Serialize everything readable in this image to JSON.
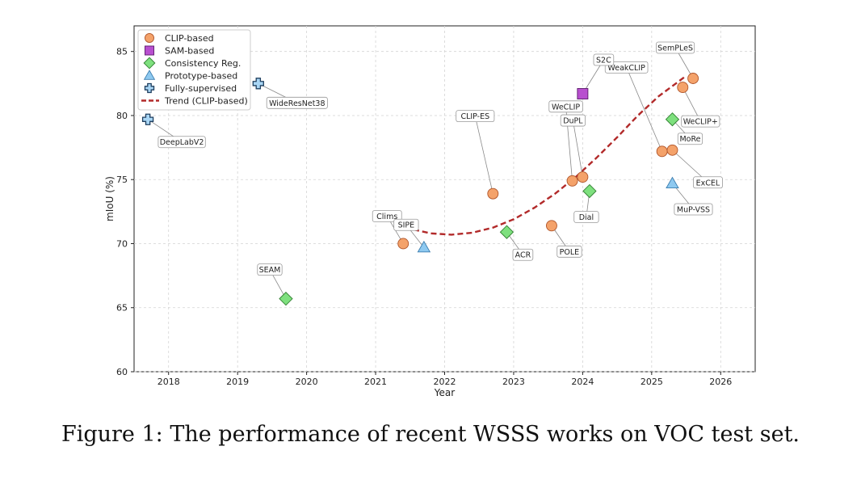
{
  "caption": "Figure 1: The performance of recent WSSS works on VOC test set.",
  "chart_data": {
    "type": "scatter",
    "xlabel": "Year",
    "ylabel": "mIoU (%)",
    "xlim": [
      2017.5,
      2026.5
    ],
    "ylim": [
      60,
      87
    ],
    "xticks": [
      2018,
      2019,
      2020,
      2021,
      2022,
      2023,
      2024,
      2025,
      2026
    ],
    "yticks": [
      60,
      65,
      70,
      75,
      80,
      85
    ],
    "grid": true,
    "legend_position": "top-left",
    "series": [
      {
        "name": "CLIP-based",
        "marker": "circle",
        "color": "#f4a26a",
        "edge": "#b0552a",
        "points": [
          {
            "x": 2021.4,
            "y": 70.0,
            "label": "Clims"
          },
          {
            "x": 2022.7,
            "y": 73.9,
            "label": "CLIP-ES"
          },
          {
            "x": 2023.55,
            "y": 71.4,
            "label": "POLE"
          },
          {
            "x": 2023.85,
            "y": 74.9,
            "label": "WeCLIP"
          },
          {
            "x": 2024.0,
            "y": 75.2,
            "label": "DuPL"
          },
          {
            "x": 2025.15,
            "y": 77.2,
            "label": "WeakCLIP"
          },
          {
            "x": 2025.3,
            "y": 77.3,
            "label": "ExCEL"
          },
          {
            "x": 2025.45,
            "y": 82.2,
            "label": "WeCLIP+"
          },
          {
            "x": 2025.6,
            "y": 82.9,
            "label": "SemPLeS"
          }
        ]
      },
      {
        "name": "SAM-based",
        "marker": "square",
        "color": "#b84fcf",
        "edge": "#5a1a6a",
        "points": [
          {
            "x": 2024.0,
            "y": 81.7,
            "label": "S2C"
          }
        ]
      },
      {
        "name": "Consistency Reg.",
        "marker": "diamond",
        "color": "#7ee07e",
        "edge": "#2e7d2e",
        "points": [
          {
            "x": 2019.7,
            "y": 65.7,
            "label": "SEAM"
          },
          {
            "x": 2022.9,
            "y": 70.9,
            "label": "ACR"
          },
          {
            "x": 2024.1,
            "y": 74.1,
            "label": "Dial"
          },
          {
            "x": 2025.3,
            "y": 79.7,
            "label": "MoRe"
          }
        ]
      },
      {
        "name": "Prototype-based",
        "marker": "triangle",
        "color": "#8ec9f0",
        "edge": "#3d7fb0",
        "points": [
          {
            "x": 2021.7,
            "y": 69.7,
            "label": "SIPE"
          },
          {
            "x": 2025.3,
            "y": 74.7,
            "label": "MuP-VSS"
          }
        ]
      },
      {
        "name": "Fully-supervised",
        "marker": "plus",
        "color": "#a9d6f5",
        "edge": "#1f3f5f",
        "points": [
          {
            "x": 2017.7,
            "y": 79.7,
            "label": "DeepLabV2"
          },
          {
            "x": 2019.3,
            "y": 82.5,
            "label": "WideResNet38"
          }
        ]
      }
    ],
    "trend": {
      "name": "Trend (CLIP-based)",
      "color": "#b22a2a",
      "style": "dashed",
      "x": [
        2021.55,
        2021.8,
        2022.1,
        2022.4,
        2022.7,
        2023.0,
        2023.3,
        2023.6,
        2023.9,
        2024.2,
        2024.5,
        2024.8,
        2025.1,
        2025.5
      ],
      "y": [
        71.1,
        70.8,
        70.7,
        70.85,
        71.25,
        71.9,
        72.8,
        73.9,
        75.2,
        76.7,
        78.3,
        80.0,
        81.5,
        83.1
      ]
    }
  }
}
